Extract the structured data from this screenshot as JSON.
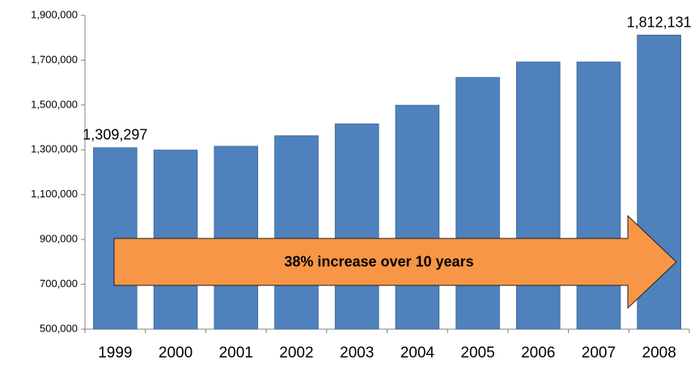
{
  "chart_data": {
    "type": "bar",
    "categories": [
      "1999",
      "2000",
      "2001",
      "2002",
      "2003",
      "2004",
      "2005",
      "2006",
      "2007",
      "2008"
    ],
    "values": [
      1309297,
      1299000,
      1316000,
      1363000,
      1416000,
      1499000,
      1623000,
      1692000,
      1692000,
      1812131
    ],
    "ylim": [
      500000,
      1900000
    ],
    "yticks": [
      "500,000",
      "700,000",
      "900,000",
      "1,100,000",
      "1,300,000",
      "1,500,000",
      "1,700,000",
      "1,900,000"
    ],
    "ytick_values": [
      500000,
      700000,
      900000,
      1100000,
      1300000,
      1500000,
      1700000,
      1900000
    ],
    "data_labels": [
      {
        "category": "1999",
        "text": "1,309,297"
      },
      {
        "category": "2008",
        "text": "1,812,131"
      }
    ],
    "annotation": "38% increase over 10 years",
    "grid": false,
    "legend": "none",
    "colors": {
      "bar": "#4f81bd",
      "bar_edge": "#3a6595",
      "arrow_fill": "#f79646",
      "arrow_edge": "#1f1f1f",
      "axis": "#808080"
    }
  }
}
